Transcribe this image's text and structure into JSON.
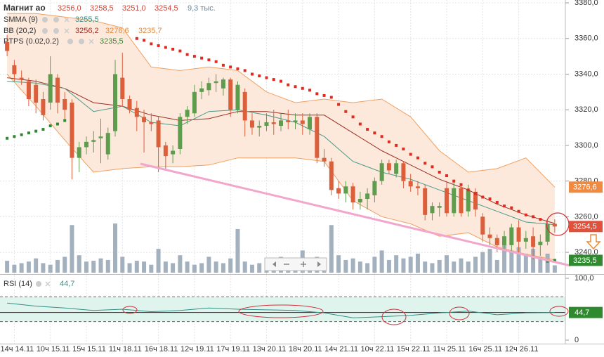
{
  "chart_data": {
    "type": "candlestick",
    "title": "Магнит ао",
    "header_ohlc": [
      {
        "value": 3256.0,
        "label": "3256,0"
      },
      {
        "value": 3258.5,
        "label": "3258,5"
      },
      {
        "value": 3251.0,
        "label": "3251,0"
      },
      {
        "value": 3254.5,
        "label": "3254,5"
      }
    ],
    "header_volume": {
      "value": 9.3,
      "label": "9,3 тыс."
    },
    "categories": [
      null,
      "14ч 14.11",
      null,
      null,
      null,
      null,
      "10ч 15.11",
      null,
      null,
      null,
      null,
      "15ч 15.11",
      null,
      null,
      null,
      null,
      "11ч 18.11",
      null,
      null,
      null,
      null,
      "16ч 18.11",
      null,
      null,
      null,
      null,
      "12ч 19.11",
      null,
      null,
      null,
      null,
      "17ч 19.11",
      null,
      null,
      null,
      null,
      "13ч 20.11",
      null,
      null,
      null,
      null,
      "18ч 20.11",
      null,
      null,
      null,
      null,
      "14ч 21.11",
      null,
      null,
      null,
      null,
      "10ч 22.11",
      null,
      null,
      null,
      null,
      "15ч 22.11",
      null,
      null,
      null,
      null,
      "11ч 25.11",
      null,
      null,
      null,
      null,
      "16ч 25.11",
      null,
      null,
      null,
      null,
      "12ч 26.11",
      null,
      null,
      null,
      null,
      null
    ],
    "open": [
      3358,
      3345,
      3338,
      3336,
      3334,
      3326,
      3324,
      3338,
      3326,
      3324,
      3293,
      3299,
      3302,
      3304,
      3295,
      3308,
      3338,
      3326,
      3321,
      3316,
      3313,
      3314,
      3300,
      3295,
      3298,
      3316,
      3318,
      3330,
      3331,
      3335,
      3332,
      3337,
      3320,
      3330,
      3314,
      3310,
      3311,
      3313,
      3311,
      3314,
      3313,
      3314,
      3309,
      3316,
      3293,
      3291,
      3276,
      3273,
      3277,
      3268,
      3270,
      3272,
      3280,
      3290,
      3284,
      3290,
      3280,
      3277,
      3276,
      3262,
      3265,
      3276,
      3262,
      3276,
      3263,
      3274,
      3260,
      3250,
      3248,
      3244,
      3244,
      3254,
      3246,
      3249,
      3244,
      3246,
      3256
    ],
    "high": [
      3362,
      3348,
      3342,
      3338,
      3337,
      3330,
      3350,
      3340,
      3330,
      3326,
      3302,
      3305,
      3308,
      3315,
      3310,
      3348,
      3352,
      3328,
      3325,
      3320,
      3318,
      3316,
      3302,
      3300,
      3318,
      3322,
      3334,
      3336,
      3338,
      3340,
      3338,
      3338,
      3336,
      3332,
      3318,
      3314,
      3318,
      3320,
      3318,
      3320,
      3318,
      3318,
      3318,
      3318,
      3298,
      3293,
      3280,
      3280,
      3279,
      3274,
      3276,
      3282,
      3292,
      3292,
      3292,
      3291,
      3284,
      3280,
      3278,
      3268,
      3268,
      3280,
      3280,
      3278,
      3278,
      3276,
      3262,
      3254,
      3250,
      3252,
      3256,
      3258,
      3252,
      3254,
      3250,
      3258,
      3258.5
    ],
    "low": [
      3350,
      3336,
      3334,
      3322,
      3318,
      3314,
      3320,
      3318,
      3315,
      3281,
      3285,
      3295,
      3296,
      3290,
      3292,
      3305,
      3322,
      3318,
      3308,
      3296,
      3308,
      3285,
      3286,
      3290,
      3295,
      3312,
      3316,
      3326,
      3328,
      3330,
      3328,
      3316,
      3318,
      3305,
      3306,
      3305,
      3308,
      3306,
      3308,
      3309,
      3309,
      3306,
      3306,
      3290,
      3288,
      3272,
      3270,
      3268,
      3264,
      3264,
      3264,
      3268,
      3278,
      3284,
      3282,
      3276,
      3274,
      3272,
      3258,
      3258,
      3260,
      3260,
      3260,
      3260,
      3260,
      3260,
      3246,
      3244,
      3240,
      3241,
      3240,
      3240,
      3242,
      3236,
      3238,
      3244,
      3251
    ],
    "close": [
      3353,
      3340,
      3337,
      3326,
      3324,
      3317,
      3340,
      3324,
      3320,
      3293,
      3299,
      3302,
      3303,
      3305,
      3307,
      3340,
      3326,
      3320,
      3316,
      3313,
      3312,
      3299,
      3294,
      3297,
      3316,
      3320,
      3330,
      3332,
      3335,
      3336,
      3337,
      3320,
      3334,
      3314,
      3310,
      3311,
      3313,
      3312,
      3314,
      3313,
      3314,
      3312,
      3316,
      3293,
      3291,
      3275,
      3273,
      3277,
      3268,
      3270,
      3273,
      3280,
      3290,
      3286,
      3290,
      3280,
      3277,
      3276,
      3261,
      3266,
      3266,
      3262,
      3276,
      3262,
      3275,
      3264,
      3250,
      3248,
      3244,
      3249,
      3254,
      3246,
      3248,
      3243,
      3246,
      3256,
      3254.5
    ],
    "up_color": "#5e9c4e",
    "down_color": "#dc5f3c",
    "ylim": [
      3227.8,
      3381.6
    ],
    "yticks": [
      {
        "value": 3240,
        "label": "3240,0"
      },
      {
        "value": 3260,
        "label": "3260,0"
      },
      {
        "value": 3280,
        "label": "3280,0"
      },
      {
        "value": 3300,
        "label": "3300,0"
      },
      {
        "value": 3320,
        "label": "3320,0"
      },
      {
        "value": 3340,
        "label": "3340,0"
      },
      {
        "value": 3360,
        "label": "3360,0"
      },
      {
        "value": 3380,
        "label": "3380,0"
      }
    ],
    "grid": true,
    "volume": {
      "color": "#a3b1bf",
      "values": [
        15,
        10,
        12,
        14,
        18,
        12,
        10,
        16,
        20,
        60,
        22,
        14,
        15,
        18,
        16,
        62,
        20,
        12,
        15,
        14,
        10,
        30,
        14,
        12,
        22,
        14,
        10,
        12,
        20,
        14,
        12,
        18,
        55,
        14,
        10,
        12,
        14,
        10,
        20,
        16,
        12,
        28,
        14,
        20,
        18,
        60,
        22,
        16,
        18,
        14,
        12,
        20,
        28,
        16,
        22,
        18,
        20,
        24,
        14,
        12,
        16,
        22,
        14,
        18,
        14,
        20,
        26,
        30,
        16,
        35,
        28,
        32,
        24,
        30,
        20,
        24,
        9.3
      ]
    },
    "indicator_x": [
      0,
      4,
      8,
      12,
      16,
      20,
      24,
      28,
      32,
      36,
      40,
      44,
      48,
      52,
      56,
      60,
      64,
      68,
      72,
      76
    ],
    "smma": {
      "name": "SMMA (9)",
      "color": "#4a9a88",
      "value_label": "3255,5",
      "values": [
        3336,
        3335,
        3332,
        3319,
        3322,
        3313,
        3311,
        3319,
        3320,
        3317,
        3313,
        3305,
        3291,
        3285,
        3281,
        3275,
        3269,
        3263,
        3257,
        3255.5
      ]
    },
    "bb": {
      "name": "BB (20,2)",
      "fill": "#fde9dc",
      "middle": {
        "color": "#9b2d22",
        "value_label": "3256,2",
        "values": [
          3338,
          3336,
          3332,
          3324,
          3322,
          3317,
          3314,
          3315,
          3319,
          3319,
          3317,
          3317,
          3307,
          3297,
          3289,
          3281,
          3275,
          3267,
          3261,
          3256.2
        ]
      },
      "upper": {
        "color": "#f0a060",
        "value_label": "3276,6",
        "values": [
          3374,
          3374,
          3372,
          3370,
          3366,
          3344,
          3342,
          3344,
          3342,
          3330,
          3324,
          3326,
          3324,
          3326,
          3316,
          3297,
          3285,
          3287,
          3293,
          3276.6
        ]
      },
      "lower": {
        "color": "#f0a060",
        "value_label": "3235,7",
        "values": [
          3340,
          3322,
          3303,
          3285,
          3287,
          3288,
          3288,
          3289,
          3293,
          3293,
          3293,
          3291,
          3269,
          3260,
          3256,
          3249,
          3251,
          3243,
          3239,
          3235.7
        ]
      }
    },
    "ptps": {
      "name": "PTPS (0.02,0.2)",
      "value_label": "3235,5",
      "up_color": "#2f8a2f",
      "down_color": "#e02a20",
      "values": [
        3304,
        3305,
        3306,
        3307,
        3308,
        3309,
        3311,
        3312,
        3314,
        null,
        null,
        null,
        null,
        null,
        null,
        null,
        null,
        null,
        3360,
        3359,
        3357,
        3356,
        3355,
        3354,
        3353,
        3351,
        3350,
        3349,
        3348,
        3347,
        3345,
        3344,
        3343,
        3342,
        3340,
        3339,
        3338,
        3337,
        3336,
        3334,
        3333,
        3332,
        3331,
        3329,
        3328,
        3327,
        3323,
        3319,
        3316,
        3312,
        3309,
        3307,
        3305,
        3302,
        3300,
        3298,
        3295,
        3293,
        3290,
        3288,
        3285,
        3283,
        3280,
        3278,
        3275,
        3273,
        3271,
        3270,
        3268,
        3266,
        3265,
        3263,
        3261,
        3260,
        3258.5,
        3235,
        3235.5
      ]
    },
    "price_badges": [
      {
        "value": 3276.6,
        "label": "3276,6",
        "color": "#f08a40"
      },
      {
        "value": 3254.5,
        "label": "3254,5",
        "color": "#e0503a"
      },
      {
        "value": 3235.5,
        "label": "3235,5",
        "color": "#2f8a2f"
      }
    ],
    "rsi": {
      "name": "RSI (14)",
      "color": "#2f8f86",
      "value_label": "44,7",
      "badge_color": "#2f8a2f",
      "band_fill": "#e0f4ee",
      "ylim": [
        0,
        100
      ],
      "yticks": [
        {
          "value": 100,
          "label": "100,0"
        },
        0
      ],
      "levels": [
        70,
        30
      ],
      "values": [
        60,
        55,
        52,
        48,
        50,
        46,
        48,
        52,
        50,
        49,
        48,
        44,
        36,
        38,
        40,
        44,
        47,
        41,
        44,
        44.7
      ]
    }
  }
}
